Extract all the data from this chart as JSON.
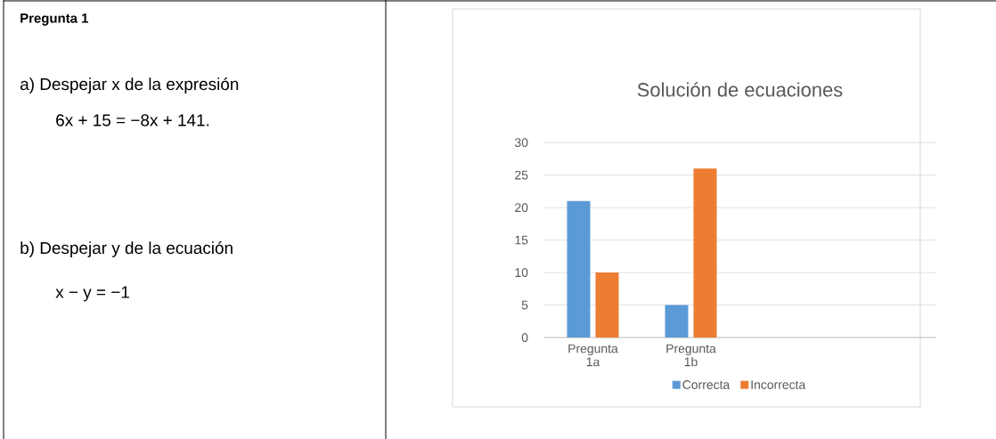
{
  "chart_data": {
    "type": "bar",
    "title": "Solución de ecuaciones",
    "categories": [
      "Pregunta 1a",
      "Pregunta 1b",
      null,
      null
    ],
    "series": [
      {
        "name": "Correcta",
        "color": "#5b9bd5",
        "values": [
          21,
          5,
          null,
          null
        ]
      },
      {
        "name": "Incorrecta",
        "color": "#ed7d31",
        "values": [
          10,
          26,
          null,
          null
        ]
      }
    ],
    "ylim": [
      0,
      30
    ],
    "yticks": [
      0,
      5,
      10,
      15,
      20,
      25,
      30
    ],
    "grid": "y",
    "legend": "bottom",
    "annotations": [
      "Pregunta 1",
      "a) Despejar x de la expresión",
      "6x + 15 = −8x + 141.",
      "b) Despejar y de la ecuación",
      "x − y = −1"
    ]
  }
}
